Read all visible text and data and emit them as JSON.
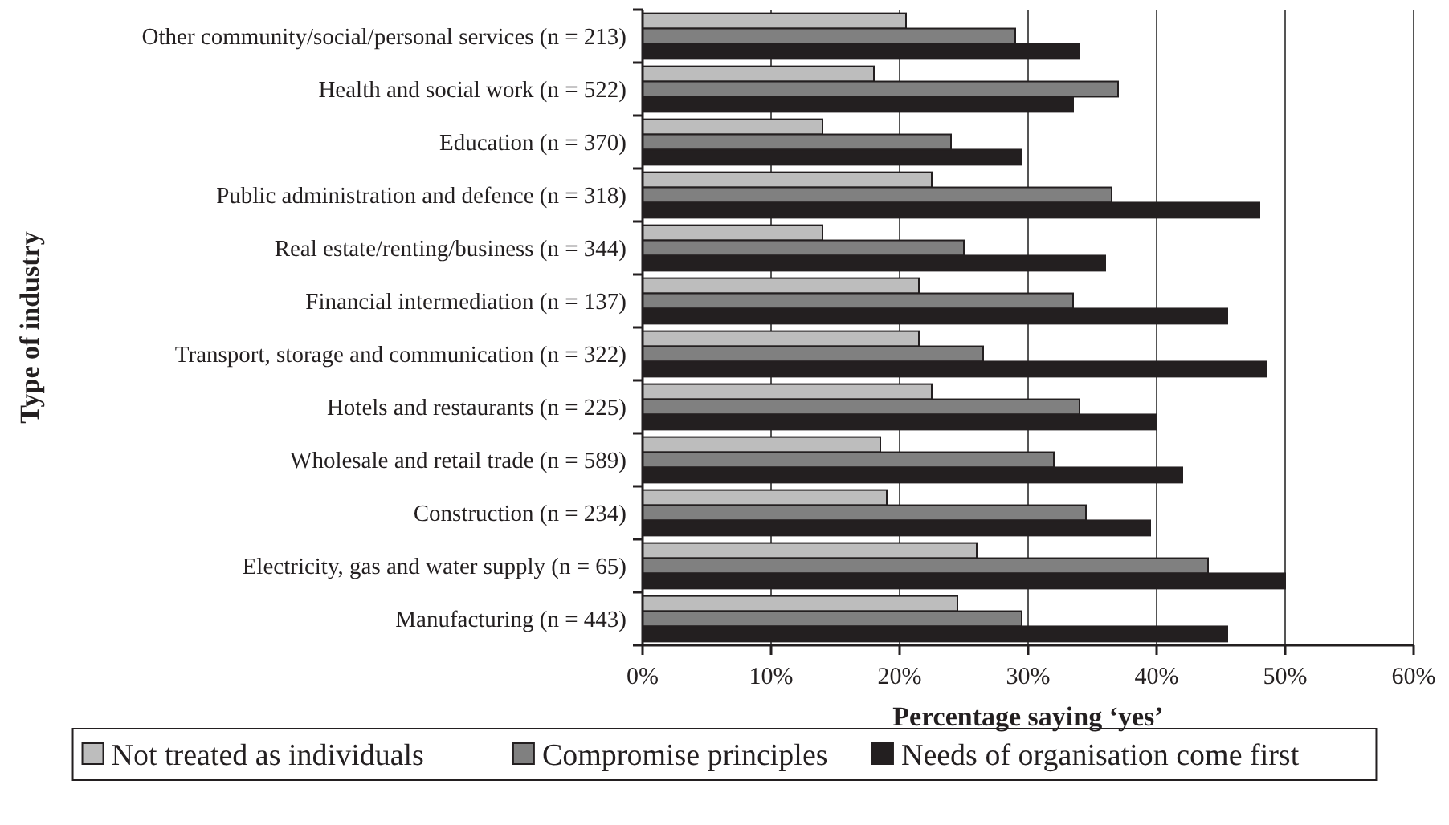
{
  "chart_data": {
    "type": "bar",
    "orientation": "horizontal",
    "xlabel": "Percentage saying ‘yes’",
    "ylabel": "Type of industry",
    "categories": [
      "Other community/social/personal services (n = 213)",
      "Health and social work (n = 522)",
      "Education (n = 370)",
      "Public administration and defence (n = 318)",
      "Real estate/renting/business (n = 344)",
      "Financial intermediation (n = 137)",
      "Transport, storage and communication (n = 322)",
      "Hotels and restaurants (n = 225)",
      "Wholesale and retail trade (n = 589)",
      "Construction (n = 234)",
      "Electricity, gas and water supply (n = 65)",
      "Manufacturing (n = 443)"
    ],
    "series": [
      {
        "name": "Not treated as individuals",
        "color": "#bdbdbd",
        "values": [
          20.5,
          18,
          14,
          22.5,
          14,
          21.5,
          21.5,
          22.5,
          18.5,
          19,
          26,
          24.5
        ]
      },
      {
        "name": "Compromise principles",
        "color": "#808080",
        "values": [
          29,
          37,
          24,
          36.5,
          25,
          33.5,
          26.5,
          34,
          32,
          34.5,
          44,
          29.5
        ]
      },
      {
        "name": "Needs of organisation come first",
        "color": "#231f20",
        "values": [
          34,
          33.5,
          29.5,
          48,
          36,
          45.5,
          48.5,
          40,
          42,
          39.5,
          50,
          45.5
        ]
      }
    ],
    "xlim": [
      0,
      60
    ],
    "xticks": [
      {
        "value": 0,
        "label": "0%"
      },
      {
        "value": 10,
        "label": "10%"
      },
      {
        "value": 20,
        "label": "20%"
      },
      {
        "value": 30,
        "label": "30%"
      },
      {
        "value": 40,
        "label": "40%"
      },
      {
        "value": 50,
        "label": "50%"
      },
      {
        "value": 60,
        "label": "60%"
      }
    ],
    "grid": "x",
    "legend": "bottom"
  }
}
